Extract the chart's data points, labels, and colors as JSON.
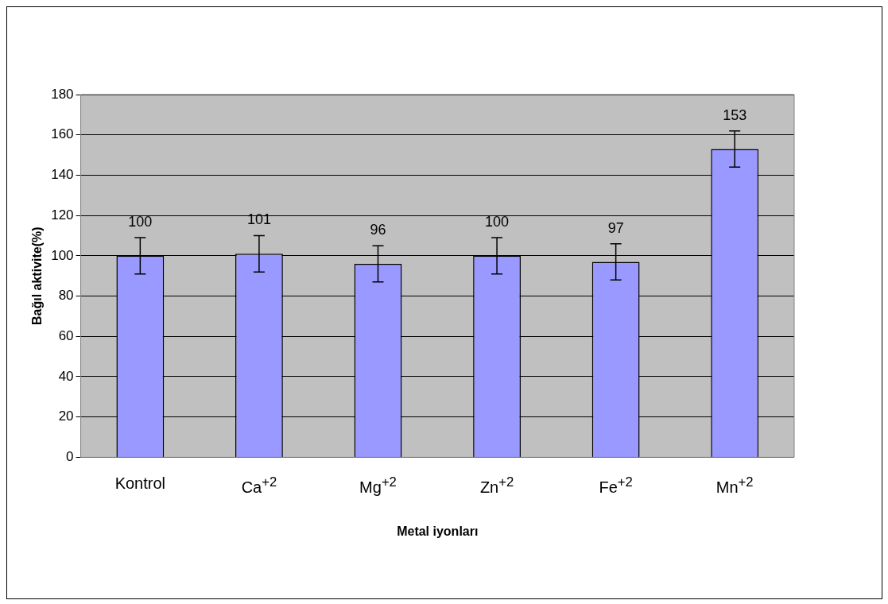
{
  "chart_data": {
    "type": "bar",
    "xlabel": "Metal iyonları",
    "ylabel": "Bağıl aktivite(%)",
    "categories": [
      "Kontrol",
      "Ca$^{+2}$",
      "Mg$^{+2}$",
      "Zn$^{+2}$",
      "Fe$^{+2}$",
      "Mn$^{+2}$"
    ],
    "values": [
      100,
      101,
      96,
      100,
      97,
      153
    ],
    "errors": [
      9,
      9,
      9,
      9,
      9,
      9
    ],
    "color": "#9999ff",
    "ylim": [
      0,
      180
    ],
    "yticks": [
      0,
      20,
      40,
      60,
      80,
      100,
      120,
      140,
      160,
      180
    ],
    "grid": "y",
    "legend": false,
    "data_labels": true
  }
}
